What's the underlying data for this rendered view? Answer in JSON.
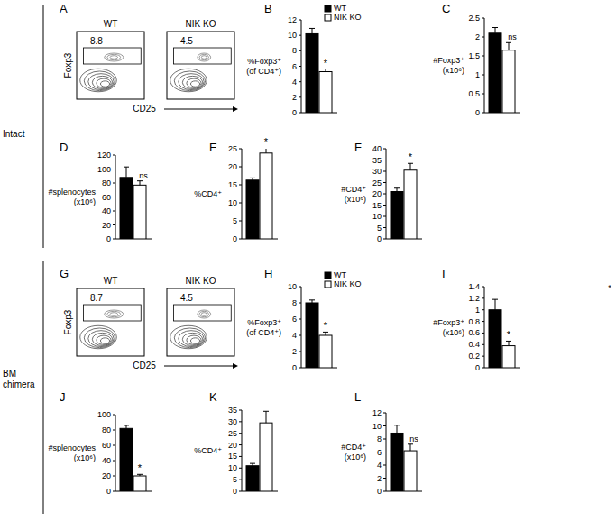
{
  "sections": [
    {
      "label": "Intact"
    },
    {
      "label": "BM\nchimera"
    }
  ],
  "corner_note": "*",
  "flow_plots": [
    {
      "panel": "A",
      "ylabel": "Foxp3",
      "xlabel": "CD25",
      "plots": [
        {
          "title": "WT",
          "gate_percent": 8.8
        },
        {
          "title": "NIK KO",
          "gate_percent": 4.5
        }
      ]
    },
    {
      "panel": "G",
      "ylabel": "Foxp3",
      "xlabel": "CD25",
      "plots": [
        {
          "title": "WT",
          "gate_percent": 8.7
        },
        {
          "title": "NIK KO",
          "gate_percent": 4.5
        }
      ]
    }
  ],
  "chart_data": [
    {
      "type": "bar",
      "title": "B",
      "ylabel": "%Foxp3⁺\n(of CD4⁺)",
      "categories": [
        null
      ],
      "legend": "top-right",
      "annotation": "*",
      "ylim": [
        0,
        12
      ],
      "yticks": [
        0,
        2,
        4,
        6,
        8,
        10,
        12
      ],
      "series": [
        {
          "name": "WT",
          "color": "#000000",
          "values": [
            10.2
          ],
          "errors": [
            0.7
          ]
        },
        {
          "name": "NIK KO",
          "color": "#ffffff",
          "values": [
            5.3
          ],
          "errors": [
            0.35
          ]
        }
      ]
    },
    {
      "type": "bar",
      "title": "C",
      "ylabel": "#Foxp3⁺\n(x10⁶)",
      "categories": [
        null
      ],
      "annotation": "ns",
      "ylim": [
        0,
        2.5
      ],
      "yticks": [
        0,
        0.5,
        1,
        1.5,
        2,
        2.5
      ],
      "series": [
        {
          "color": "#000000",
          "values": [
            2.1
          ],
          "errors": [
            0.15
          ]
        },
        {
          "color": "#ffffff",
          "values": [
            1.65
          ],
          "errors": [
            0.2
          ]
        }
      ]
    },
    {
      "type": "bar",
      "title": "D",
      "ylabel": "#splenocytes\n(x10⁶)",
      "categories": [
        null
      ],
      "annotation": "ns",
      "ylim": [
        0,
        120
      ],
      "yticks": [
        0,
        20,
        40,
        60,
        80,
        100,
        120
      ],
      "series": [
        {
          "color": "#000000",
          "values": [
            88
          ],
          "errors": [
            15
          ]
        },
        {
          "color": "#ffffff",
          "values": [
            77
          ],
          "errors": [
            6
          ]
        }
      ]
    },
    {
      "type": "bar",
      "title": "E",
      "ylabel": "%CD4⁺",
      "categories": [
        null
      ],
      "annotation": "*",
      "ylim": [
        0,
        25
      ],
      "yticks": [
        0,
        5,
        10,
        15,
        20,
        25
      ],
      "series": [
        {
          "color": "#000000",
          "values": [
            16.3
          ],
          "errors": [
            0.6
          ]
        },
        {
          "color": "#ffffff",
          "values": [
            23.8
          ],
          "errors": [
            1.5
          ]
        }
      ]
    },
    {
      "type": "bar",
      "title": "F",
      "ylabel": "#CD4⁺\n(x10⁶)",
      "categories": [
        null
      ],
      "annotation": "*",
      "ylim": [
        0,
        40
      ],
      "yticks": [
        0,
        5,
        10,
        15,
        20,
        25,
        30,
        35,
        40
      ],
      "series": [
        {
          "color": "#000000",
          "values": [
            21
          ],
          "errors": [
            1.5
          ]
        },
        {
          "color": "#ffffff",
          "values": [
            30.5
          ],
          "errors": [
            3
          ]
        }
      ]
    },
    {
      "type": "bar",
      "title": "H",
      "ylabel": "%Foxp3⁺\n(of CD4⁺)",
      "categories": [
        null
      ],
      "legend": "top-right",
      "annotation": "*",
      "ylim": [
        0,
        10
      ],
      "yticks": [
        0,
        2,
        4,
        6,
        8,
        10
      ],
      "series": [
        {
          "name": "WT",
          "color": "#000000",
          "values": [
            8
          ],
          "errors": [
            0.35
          ]
        },
        {
          "name": "NIK KO",
          "color": "#ffffff",
          "values": [
            4
          ],
          "errors": [
            0.4
          ]
        }
      ]
    },
    {
      "type": "bar",
      "title": "I",
      "ylabel": "#Foxp3⁺\n(x10⁶)",
      "categories": [
        null
      ],
      "annotation": "*",
      "ylim": [
        0,
        1.4
      ],
      "yticks": [
        0,
        0.2,
        0.4,
        0.6,
        0.8,
        1,
        1.2,
        1.4
      ],
      "series": [
        {
          "color": "#000000",
          "values": [
            1.0
          ],
          "errors": [
            0.18
          ]
        },
        {
          "color": "#ffffff",
          "values": [
            0.38
          ],
          "errors": [
            0.08
          ]
        }
      ]
    },
    {
      "type": "bar",
      "title": "J",
      "ylabel": "#splenocytes\n(x10⁶)",
      "categories": [
        null
      ],
      "annotation": "*",
      "ylim": [
        0,
        100
      ],
      "yticks": [
        0,
        20,
        40,
        60,
        80,
        100
      ],
      "series": [
        {
          "color": "#000000",
          "values": [
            82
          ],
          "errors": [
            4
          ]
        },
        {
          "color": "#ffffff",
          "values": [
            20
          ],
          "errors": [
            2
          ]
        }
      ]
    },
    {
      "type": "bar",
      "title": "K",
      "ylabel": "%CD4⁺",
      "categories": [
        null
      ],
      "ylim": [
        0,
        35
      ],
      "yticks": [
        0,
        5,
        10,
        15,
        20,
        25,
        30,
        35
      ],
      "series": [
        {
          "color": "#000000",
          "values": [
            11
          ],
          "errors": [
            1
          ]
        },
        {
          "color": "#ffffff",
          "values": [
            29.5
          ],
          "errors": [
            5
          ]
        }
      ]
    },
    {
      "type": "bar",
      "title": "L",
      "ylabel": "#CD4⁺\n(x10⁶)",
      "categories": [
        null
      ],
      "annotation": "ns",
      "ylim": [
        0,
        12
      ],
      "yticks": [
        0,
        2,
        4,
        6,
        8,
        10,
        12
      ],
      "series": [
        {
          "color": "#000000",
          "values": [
            8.9
          ],
          "errors": [
            1.2
          ]
        },
        {
          "color": "#ffffff",
          "values": [
            6.2
          ],
          "errors": [
            1
          ]
        }
      ]
    }
  ]
}
